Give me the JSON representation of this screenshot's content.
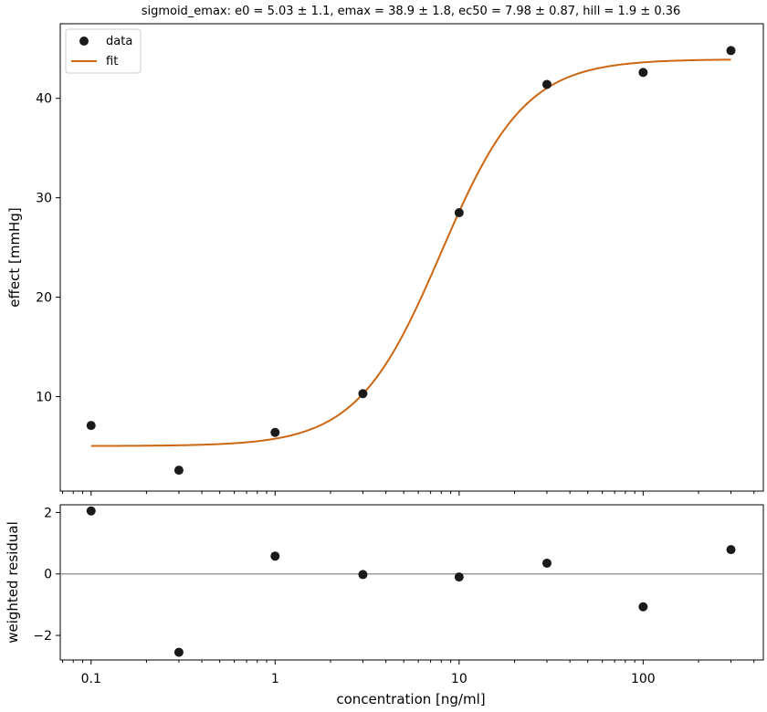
{
  "chart_data": [
    {
      "type": "scatter",
      "title": "sigmoid_emax: e0 = 5.03 ± 1.1, emax = 38.9 ± 1.8, ec50 = 7.98 ± 0.87, hill = 1.9 ± 0.36",
      "ylabel": "effect [mmHg]",
      "xscale": "log",
      "xlim": [
        0.068,
        450
      ],
      "ylim": [
        0.5,
        47.5
      ],
      "yticks": [
        10,
        20,
        30,
        40
      ],
      "yticklabels": [
        "10",
        "20",
        "30",
        "40"
      ],
      "legend": {
        "placement": "top-left",
        "entries": [
          "data",
          "fit"
        ]
      },
      "series": [
        {
          "name": "data",
          "kind": "points",
          "x": [
            0.1,
            0.3,
            1,
            3,
            10,
            30,
            100,
            300
          ],
          "y": [
            7.1,
            2.6,
            6.4,
            10.3,
            28.5,
            41.4,
            42.6,
            44.8
          ],
          "color": "#1a1a1a"
        },
        {
          "name": "fit",
          "kind": "curve",
          "model": "sigmoid_emax",
          "params": {
            "e0": 5.03,
            "emax": 38.9,
            "ec50": 7.98,
            "hill": 1.9
          },
          "x_range": [
            0.1,
            300
          ],
          "color": "#cc6611"
        }
      ]
    },
    {
      "type": "scatter",
      "xlabel": "concentration [ng/ml]",
      "ylabel": "weighted residual",
      "xscale": "log",
      "xlim": [
        0.068,
        450
      ],
      "ylim": [
        -2.8,
        2.25
      ],
      "yticks": [
        -2,
        0,
        2
      ],
      "yticklabels": [
        "−2",
        "0",
        "2"
      ],
      "xticks": [
        0.1,
        1,
        10,
        100
      ],
      "xticklabels": [
        "0.1",
        "1",
        "10",
        "100"
      ],
      "reference_line": 0,
      "series": [
        {
          "kind": "points",
          "x": [
            0.1,
            0.3,
            1,
            3,
            10,
            30,
            100,
            300
          ],
          "y": [
            2.05,
            -2.55,
            0.58,
            -0.02,
            -0.1,
            0.35,
            -1.07,
            0.79
          ],
          "color": "#1a1a1a"
        }
      ]
    }
  ]
}
